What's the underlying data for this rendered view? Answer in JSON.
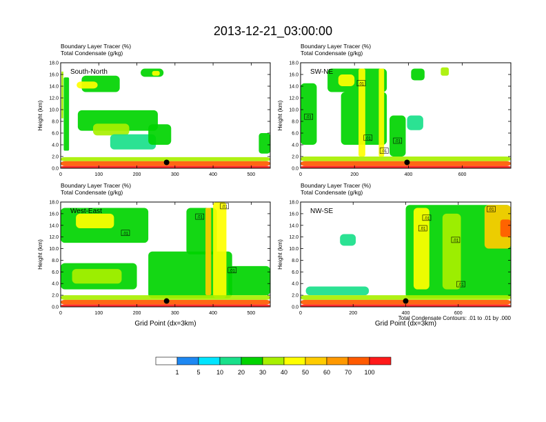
{
  "figure": {
    "title": "2013-12-21_03:00:00",
    "footnote": "Total Condensate Contours: .01 to .01 by .000"
  },
  "chart_data": [
    {
      "type": "heatmap",
      "label": "South-North",
      "field_label": "Boundary Layer Tracer   (%)",
      "contour_label": "Total Condensate   (g/kg)",
      "ylabel": "Height (km)",
      "xlabel": "",
      "xlim": [
        0,
        550
      ],
      "ylim": [
        0,
        18
      ],
      "xticks": [
        0,
        100,
        200,
        300,
        400,
        500
      ],
      "yticks": [
        0.0,
        2.0,
        4.0,
        6.0,
        8.0,
        10.0,
        12.0,
        14.0,
        16.0,
        18.0
      ],
      "marker": {
        "x": 278,
        "y": 1.0
      },
      "contour_labels": [],
      "patches": [
        {
          "x": 2,
          "y": 8.5,
          "w": 5,
          "h": 8.0,
          "level": 30
        },
        {
          "x": 8,
          "y": 3.0,
          "w": 14,
          "h": 12.5,
          "level": 20
        },
        {
          "x": 55,
          "y": 13.0,
          "w": 100,
          "h": 2.8,
          "level": 20
        },
        {
          "x": 42,
          "y": 13.6,
          "w": 55,
          "h": 1.2,
          "level": 40
        },
        {
          "x": 210,
          "y": 15.6,
          "w": 60,
          "h": 1.4,
          "level": 20
        },
        {
          "x": 240,
          "y": 15.8,
          "w": 20,
          "h": 0.8,
          "level": 40
        },
        {
          "x": 45,
          "y": 6.4,
          "w": 210,
          "h": 3.5,
          "level": 20
        },
        {
          "x": 85,
          "y": 5.6,
          "w": 95,
          "h": 2.0,
          "level": 30
        },
        {
          "x": 130,
          "y": 3.2,
          "w": 120,
          "h": 2.6,
          "level": 10
        },
        {
          "x": 230,
          "y": 4.0,
          "w": 60,
          "h": 3.5,
          "level": 20
        },
        {
          "x": 520,
          "y": 2.5,
          "w": 30,
          "h": 3.5,
          "level": 20
        },
        {
          "x": 0,
          "y": 1.2,
          "w": 550,
          "h": 0.7,
          "level": 30
        },
        {
          "x": 0,
          "y": 0.4,
          "w": 550,
          "h": 0.8,
          "level": 70
        },
        {
          "x": 0,
          "y": 0.0,
          "w": 550,
          "h": 0.4,
          "level": 100
        }
      ]
    },
    {
      "type": "heatmap",
      "label": "SW-NE",
      "field_label": "Boundary Layer Tracer   (%)",
      "contour_label": "Total Condensate   (g/kg)",
      "ylabel": "Height (km)",
      "xlabel": "",
      "xlim": [
        0,
        780
      ],
      "ylim": [
        0,
        18
      ],
      "xticks": [
        0,
        200,
        400,
        600
      ],
      "yticks": [
        0.0,
        2.0,
        4.0,
        6.0,
        8.0,
        10.0,
        12.0,
        14.0,
        16.0,
        18.0
      ],
      "marker": {
        "x": 395,
        "y": 1.0
      },
      "contour_labels": [
        {
          "x": 225,
          "y": 14.5,
          "text": ".01"
        },
        {
          "x": 30,
          "y": 8.8,
          "text": ".01"
        },
        {
          "x": 250,
          "y": 5.2,
          "text": ".01"
        },
        {
          "x": 310,
          "y": 3.0,
          "text": ".01"
        },
        {
          "x": 360,
          "y": 4.7,
          "text": ".01"
        }
      ],
      "patches": [
        {
          "x": 0,
          "y": 4.0,
          "w": 60,
          "h": 10.5,
          "level": 20
        },
        {
          "x": 100,
          "y": 13.0,
          "w": 220,
          "h": 4.0,
          "level": 20
        },
        {
          "x": 140,
          "y": 14.0,
          "w": 60,
          "h": 2.0,
          "level": 40
        },
        {
          "x": 150,
          "y": 4.0,
          "w": 170,
          "h": 9.0,
          "level": 20
        },
        {
          "x": 215,
          "y": 2.0,
          "w": 25,
          "h": 15.0,
          "level": 40
        },
        {
          "x": 290,
          "y": 2.0,
          "w": 20,
          "h": 15.0,
          "level": 40
        },
        {
          "x": 330,
          "y": 2.0,
          "w": 60,
          "h": 7.0,
          "level": 20
        },
        {
          "x": 395,
          "y": 6.5,
          "w": 60,
          "h": 2.5,
          "level": 10
        },
        {
          "x": 410,
          "y": 15.0,
          "w": 50,
          "h": 2.0,
          "level": 20
        },
        {
          "x": 520,
          "y": 15.8,
          "w": 30,
          "h": 1.4,
          "level": 30
        },
        {
          "x": 0,
          "y": 1.2,
          "w": 780,
          "h": 0.8,
          "level": 30
        },
        {
          "x": 0,
          "y": 0.4,
          "w": 780,
          "h": 0.8,
          "level": 70
        },
        {
          "x": 0,
          "y": 0.0,
          "w": 780,
          "h": 0.4,
          "level": 100
        }
      ]
    },
    {
      "type": "heatmap",
      "label": "West-East",
      "field_label": "Boundary Layer Tracer   (%)",
      "contour_label": "Total Condensate   (g/kg)",
      "ylabel": "Height (km)",
      "xlabel": "Grid Point (dx=3km)",
      "xlim": [
        0,
        550
      ],
      "ylim": [
        0,
        18
      ],
      "xticks": [
        0,
        100,
        200,
        300,
        400,
        500
      ],
      "yticks": [
        0.0,
        2.0,
        4.0,
        6.0,
        8.0,
        10.0,
        12.0,
        14.0,
        16.0,
        18.0
      ],
      "marker": {
        "x": 278,
        "y": 1.0
      },
      "contour_labels": [
        {
          "x": 365,
          "y": 15.5,
          "text": ".01"
        },
        {
          "x": 170,
          "y": 12.7,
          "text": ".01"
        },
        {
          "x": 430,
          "y": 17.3,
          "text": ".01"
        },
        {
          "x": 450,
          "y": 6.3,
          "text": ".01"
        }
      ],
      "patches": [
        {
          "x": 0,
          "y": 11.0,
          "w": 230,
          "h": 6.0,
          "level": 20
        },
        {
          "x": 40,
          "y": 13.5,
          "w": 100,
          "h": 2.5,
          "level": 40
        },
        {
          "x": 0,
          "y": 3.0,
          "w": 200,
          "h": 4.5,
          "level": 20
        },
        {
          "x": 30,
          "y": 4.0,
          "w": 130,
          "h": 2.5,
          "level": 30
        },
        {
          "x": 230,
          "y": 1.5,
          "w": 220,
          "h": 8.0,
          "level": 20
        },
        {
          "x": 330,
          "y": 9.0,
          "w": 80,
          "h": 8.0,
          "level": 20
        },
        {
          "x": 400,
          "y": 1.5,
          "w": 35,
          "h": 16.5,
          "level": 40
        },
        {
          "x": 380,
          "y": 2.0,
          "w": 15,
          "h": 15.0,
          "level": 50
        },
        {
          "x": 440,
          "y": 2.0,
          "w": 110,
          "h": 5.0,
          "level": 20
        },
        {
          "x": 0,
          "y": 1.2,
          "w": 550,
          "h": 0.8,
          "level": 30
        },
        {
          "x": 0,
          "y": 0.4,
          "w": 550,
          "h": 0.8,
          "level": 70
        },
        {
          "x": 0,
          "y": 0.0,
          "w": 550,
          "h": 0.4,
          "level": 100
        }
      ]
    },
    {
      "type": "heatmap",
      "label": "NW-SE",
      "field_label": "Boundary Layer Tracer   (%)",
      "contour_label": "Total Condensate   (g/kg)",
      "ylabel": "Height (km)",
      "xlabel": "Grid Point (dx=3km)",
      "xlim": [
        0,
        800
      ],
      "ylim": [
        0,
        18
      ],
      "xticks": [
        0,
        200,
        400,
        600
      ],
      "yticks": [
        0.0,
        2.0,
        4.0,
        6.0,
        8.0,
        10.0,
        12.0,
        14.0,
        16.0,
        18.0
      ],
      "marker": {
        "x": 400,
        "y": 1.0
      },
      "contour_labels": [
        {
          "x": 480,
          "y": 15.3,
          "text": ".01"
        },
        {
          "x": 465,
          "y": 13.5,
          "text": ".01"
        },
        {
          "x": 590,
          "y": 11.5,
          "text": ".01"
        },
        {
          "x": 610,
          "y": 3.9,
          "text": ".01"
        },
        {
          "x": 725,
          "y": 16.8,
          "text": ".01"
        }
      ],
      "patches": [
        {
          "x": 150,
          "y": 10.5,
          "w": 60,
          "h": 2.0,
          "level": 10
        },
        {
          "x": 400,
          "y": 1.5,
          "w": 400,
          "h": 16.0,
          "level": 20
        },
        {
          "x": 430,
          "y": 3.0,
          "w": 60,
          "h": 14.0,
          "level": 40
        },
        {
          "x": 540,
          "y": 3.0,
          "w": 70,
          "h": 13.0,
          "level": 30
        },
        {
          "x": 700,
          "y": 10.0,
          "w": 100,
          "h": 7.5,
          "level": 50
        },
        {
          "x": 760,
          "y": 12.0,
          "w": 40,
          "h": 3.0,
          "level": 70
        },
        {
          "x": 20,
          "y": 2.0,
          "w": 240,
          "h": 1.5,
          "level": 10
        },
        {
          "x": 0,
          "y": 1.2,
          "w": 800,
          "h": 0.8,
          "level": 30
        },
        {
          "x": 0,
          "y": 0.4,
          "w": 800,
          "h": 0.8,
          "level": 70
        },
        {
          "x": 0,
          "y": 0.0,
          "w": 800,
          "h": 0.4,
          "level": 100
        }
      ]
    }
  ],
  "colorbar": {
    "labels": [
      "1",
      "5",
      "10",
      "20",
      "30",
      "40",
      "50",
      "60",
      "70",
      "100"
    ],
    "colors": [
      "#ffffff",
      "#1e88f2",
      "#00e5ff",
      "#19e08a",
      "#00d400",
      "#a8f000",
      "#ffff00",
      "#ffcc00",
      "#ff9900",
      "#ff5a00",
      "#ff1a1a"
    ],
    "bins": [
      1,
      5,
      10,
      20,
      30,
      40,
      50,
      60,
      70,
      100
    ]
  }
}
